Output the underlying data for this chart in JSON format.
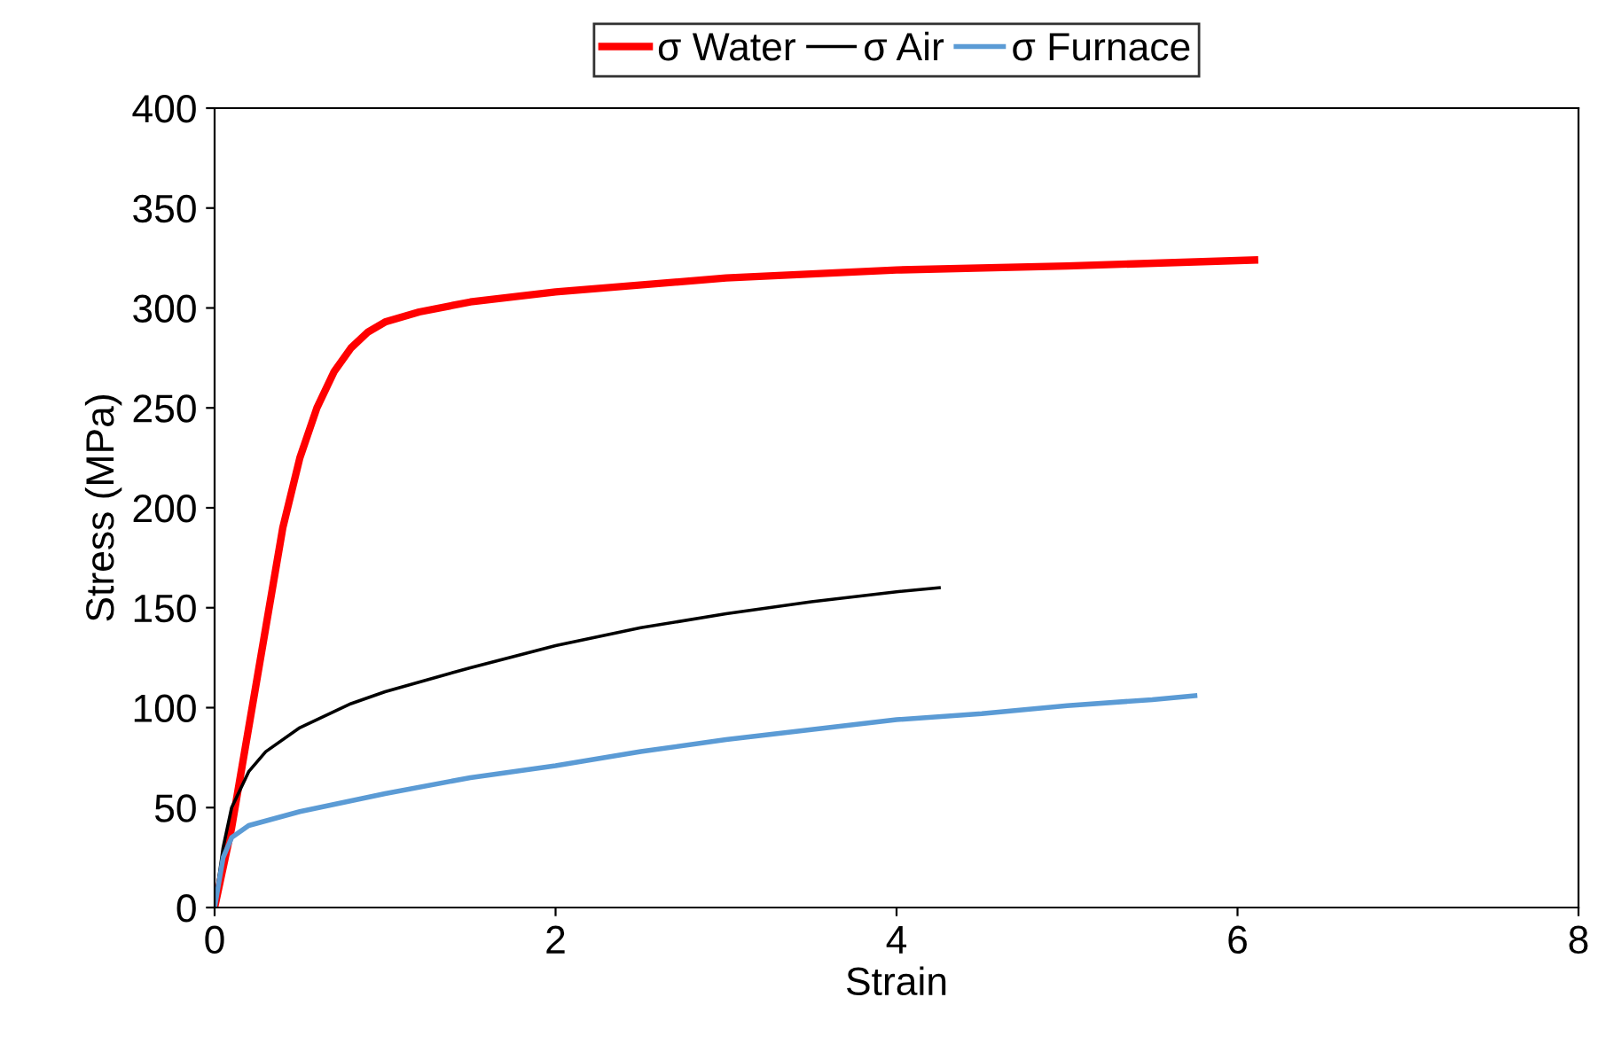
{
  "chart_data": {
    "type": "line",
    "xlabel": "Strain",
    "ylabel": "Stress (MPa)",
    "xlim": [
      0,
      8
    ],
    "xticks": [
      0,
      2,
      4,
      6,
      8
    ],
    "ylim": [
      0,
      400
    ],
    "yticks": [
      0,
      50,
      100,
      150,
      200,
      250,
      300,
      350,
      400
    ],
    "grid": false,
    "legend": "top",
    "marker": "none",
    "line_style": "solid",
    "series": [
      {
        "name": "σ Water",
        "color": "#ff0000",
        "x": [
          0,
          0.1,
          0.2,
          0.3,
          0.4,
          0.5,
          0.6,
          0.7,
          0.8,
          0.9,
          1.0,
          1.2,
          1.5,
          2,
          3,
          4,
          5,
          6.1
        ],
        "values": [
          0,
          40,
          90,
          140,
          190,
          225,
          250,
          268,
          280,
          288,
          293,
          298,
          303,
          308,
          315,
          319,
          321,
          324
        ]
      },
      {
        "name": "σ Air",
        "color": "#000000",
        "x": [
          0,
          0.05,
          0.1,
          0.2,
          0.3,
          0.5,
          0.8,
          1.0,
          1.5,
          2,
          2.5,
          3,
          3.5,
          4,
          4.25
        ],
        "values": [
          0,
          30,
          50,
          68,
          78,
          90,
          102,
          108,
          120,
          131,
          140,
          147,
          153,
          158,
          160
        ]
      },
      {
        "name": "σ Furnace",
        "color": "#5b9bd5",
        "x": [
          0,
          0.05,
          0.1,
          0.2,
          0.5,
          1,
          1.5,
          2,
          2.5,
          3,
          3.5,
          4,
          4.5,
          5,
          5.5,
          5.75
        ],
        "values": [
          0,
          25,
          35,
          41,
          48,
          57,
          65,
          71,
          78,
          84,
          89,
          94,
          97,
          101,
          104,
          106
        ]
      }
    ]
  }
}
